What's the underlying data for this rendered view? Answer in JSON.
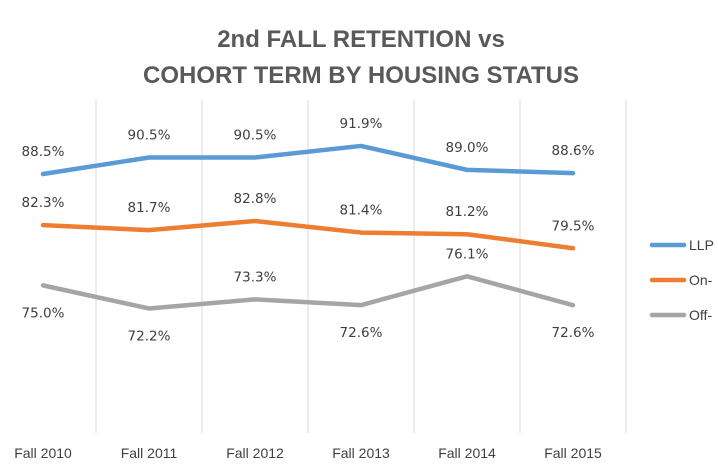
{
  "chart_data": {
    "type": "line",
    "title_lines": [
      "2nd FALL RETENTION vs",
      "COHORT TERM BY HOUSING STATUS"
    ],
    "categories": [
      "Fall 2010",
      "Fall 2011",
      "Fall 2012",
      "Fall 2013",
      "Fall 2014",
      "Fall 2015"
    ],
    "series": [
      {
        "name": "LLP",
        "color": "#5B9BD5",
        "values": [
          88.5,
          90.5,
          90.5,
          91.9,
          89.0,
          88.6
        ],
        "labels": [
          "88.5%",
          "90.5%",
          "90.5%",
          "91.9%",
          "89.0%",
          "88.6%"
        ],
        "label_position": "above"
      },
      {
        "name": "On-",
        "color": "#ED7D31",
        "values": [
          82.3,
          81.7,
          82.8,
          81.4,
          81.2,
          79.5
        ],
        "labels": [
          "82.3%",
          "81.7%",
          "82.8%",
          "81.4%",
          "81.2%",
          "79.5%"
        ],
        "label_position": "above"
      },
      {
        "name": "Off-",
        "color": "#A5A5A5",
        "values": [
          75.0,
          72.2,
          73.3,
          72.6,
          76.1,
          72.6
        ],
        "labels": [
          "75.0%",
          "72.2%",
          "73.3%",
          "72.6%",
          "76.1%",
          "72.6%"
        ],
        "label_position": [
          "below",
          "below",
          "above",
          "below",
          "above",
          "below"
        ]
      }
    ],
    "grid": "vertical",
    "legend": "right"
  }
}
